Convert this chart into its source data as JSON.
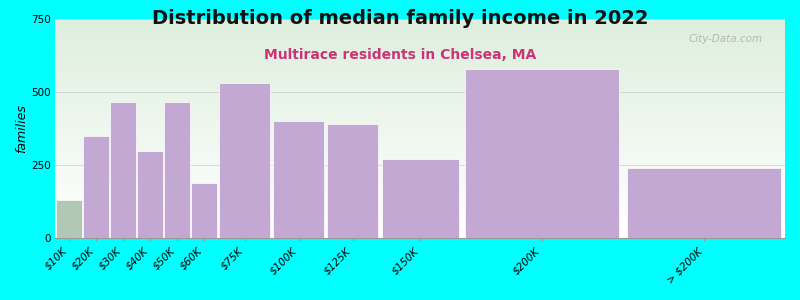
{
  "title": "Distribution of median family income in 2022",
  "subtitle": "Multirace residents in Chelsea, MA",
  "ylabel": "families",
  "bar_color": "#c4a8d4",
  "bar_edge_color": "#ffffff",
  "background_color": "#00ffff",
  "title_fontsize": 14,
  "subtitle_fontsize": 10,
  "subtitle_color": "#cc3377",
  "ylabel_fontsize": 9,
  "tick_fontsize": 7.5,
  "ylim": [
    0,
    750
  ],
  "yticks": [
    0,
    250,
    500,
    750
  ],
  "watermark": "City-Data.com",
  "categories": [
    "$10K",
    "$20K",
    "$30K",
    "$40K",
    "$50K",
    "$60K",
    "$75K",
    "$100K",
    "$125K",
    "$150K",
    "$200K",
    "> $200K"
  ],
  "bin_left": [
    0,
    1,
    2,
    3,
    4,
    5,
    6,
    8,
    10,
    12,
    15,
    21
  ],
  "bin_right": [
    1,
    2,
    3,
    4,
    5,
    6,
    8,
    10,
    12,
    15,
    21,
    27
  ],
  "values": [
    130,
    350,
    465,
    300,
    465,
    190,
    530,
    400,
    390,
    270,
    580,
    240
  ],
  "first_bar_color": "#b0c8b4",
  "plot_bg_color_top": "#ddeedd",
  "plot_bg_color_bottom": "#ffffff"
}
